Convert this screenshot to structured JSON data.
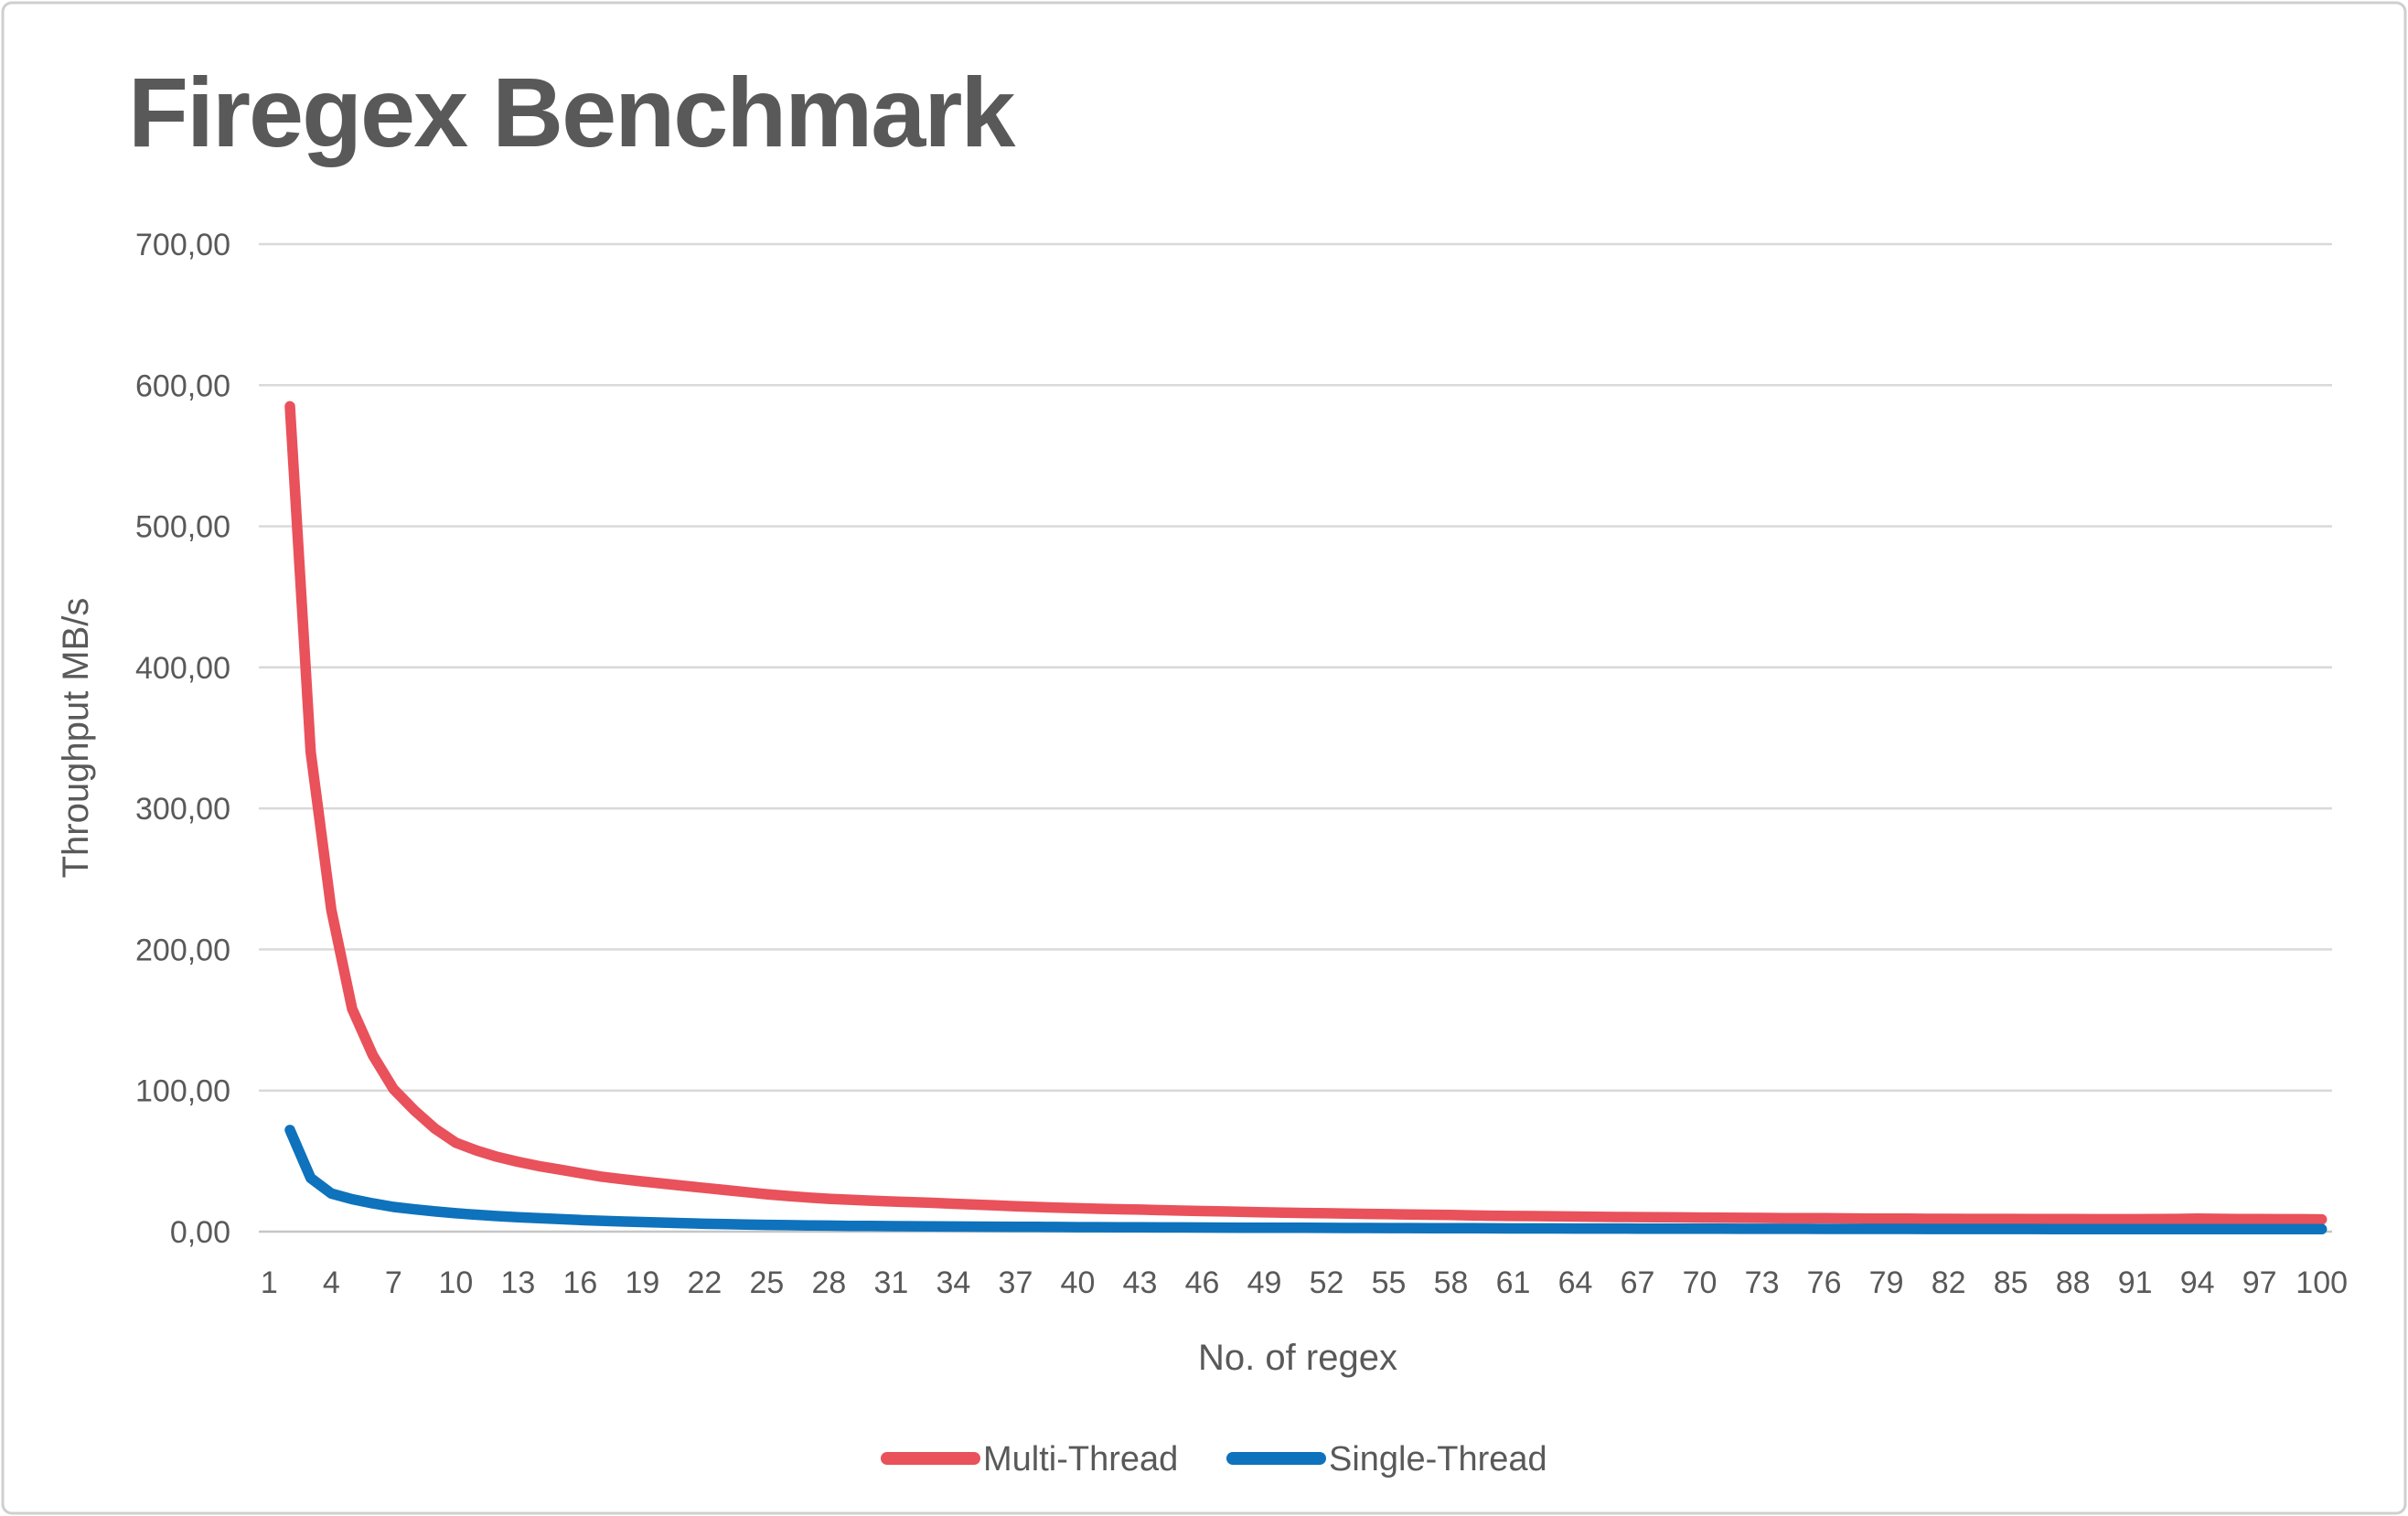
{
  "chart_data": {
    "type": "line",
    "title": "Firegex Benchmark",
    "xlabel": "No. of regex",
    "ylabel": "Throughput MB/s",
    "ylim": [
      0,
      700
    ],
    "ytick_interval": 100,
    "decimal_separator": ",",
    "ytick_labels": [
      "0,00",
      "100,00",
      "200,00",
      "300,00",
      "400,00",
      "500,00",
      "600,00",
      "700,00"
    ],
    "xticks_shown": [
      1,
      4,
      7,
      10,
      13,
      16,
      19,
      22,
      25,
      28,
      31,
      34,
      37,
      40,
      43,
      46,
      49,
      52,
      55,
      58,
      61,
      64,
      67,
      70,
      73,
      76,
      79,
      82,
      85,
      88,
      91,
      94,
      97,
      100
    ],
    "grid": "horizontal",
    "legend_position": "bottom-center",
    "x": [
      2,
      3,
      4,
      5,
      6,
      7,
      8,
      9,
      10,
      11,
      12,
      13,
      14,
      15,
      16,
      17,
      18,
      19,
      20,
      21,
      22,
      23,
      24,
      25,
      26,
      27,
      28,
      29,
      30,
      31,
      32,
      33,
      34,
      35,
      36,
      37,
      38,
      39,
      40,
      41,
      42,
      43,
      44,
      45,
      46,
      47,
      48,
      49,
      50,
      51,
      52,
      53,
      54,
      55,
      56,
      57,
      58,
      59,
      60,
      61,
      62,
      63,
      64,
      65,
      66,
      67,
      68,
      69,
      70,
      71,
      72,
      73,
      74,
      75,
      76,
      77,
      78,
      79,
      80,
      81,
      82,
      83,
      84,
      85,
      86,
      87,
      88,
      89,
      90,
      91,
      92,
      93,
      94,
      95,
      96,
      97,
      98,
      99,
      100
    ],
    "series": [
      {
        "name": "Multi-Thread",
        "color": "#e9515b",
        "values": [
          585,
          340,
          228,
          158,
          125,
          101,
          86,
          73,
          63,
          57.5,
          53,
          49.5,
          46.5,
          44,
          41.5,
          39,
          37.2,
          35.6,
          34,
          32.5,
          31,
          29.5,
          28,
          26.5,
          25.3,
          24.2,
          23.3,
          22.6,
          22,
          21.4,
          20.9,
          20.4,
          19.8,
          19.2,
          18.6,
          18,
          17.5,
          17,
          16.6,
          16.2,
          15.9,
          15.6,
          15.2,
          14.9,
          14.6,
          14.3,
          14,
          13.7,
          13.4,
          13.2,
          13,
          12.8,
          12.6,
          12.4,
          12.2,
          12,
          11.8,
          11.5,
          11.3,
          11.1,
          11,
          10.8,
          10.7,
          10.5,
          10.4,
          10.3,
          10.2,
          10.1,
          10,
          9.9,
          9.8,
          9.7,
          9.6,
          9.5,
          9.5,
          9.4,
          9.3,
          9.3,
          9.2,
          9.1,
          9.1,
          9,
          9,
          9,
          8.9,
          8.9,
          8.9,
          8.8,
          8.8,
          8.8,
          8.9,
          9,
          9.2,
          9.1,
          8.9,
          8.9,
          8.8,
          8.8,
          8.7
        ]
      },
      {
        "name": "Single-Thread",
        "color": "#0e72bc",
        "values": [
          72,
          38,
          27,
          23,
          20,
          17.5,
          15.8,
          14.3,
          13,
          12,
          11,
          10.2,
          9.6,
          8.9,
          8.2,
          7.7,
          7.2,
          6.8,
          6.4,
          6,
          5.6,
          5.3,
          5,
          4.8,
          4.6,
          4.4,
          4.3,
          4.1,
          4,
          3.9,
          3.8,
          3.7,
          3.6,
          3.55,
          3.5,
          3.4,
          3.35,
          3.3,
          3.2,
          3.15,
          3.1,
          3.05,
          3,
          2.95,
          2.9,
          2.85,
          2.8,
          2.78,
          2.75,
          2.7,
          2.65,
          2.6,
          2.58,
          2.55,
          2.5,
          2.45,
          2.4,
          2.38,
          2.35,
          2.3,
          2.28,
          2.25,
          2.22,
          2.2,
          2.18,
          2.15,
          2.12,
          2.1,
          2.08,
          2.05,
          2.03,
          2,
          2,
          1.98,
          1.97,
          1.95,
          1.94,
          1.93,
          1.92,
          1.9,
          1.9,
          1.88,
          1.87,
          1.86,
          1.85,
          1.84,
          1.83,
          1.82,
          1.81,
          1.8,
          1.8,
          1.79,
          1.78,
          1.78,
          1.77,
          1.76,
          1.76,
          1.75,
          1.75
        ]
      }
    ]
  },
  "colors": {
    "text": "#595959",
    "gridline": "#d9d9d9",
    "axis_line": "#c6c6c6",
    "border": "#cfcfcf",
    "background": "#ffffff"
  }
}
